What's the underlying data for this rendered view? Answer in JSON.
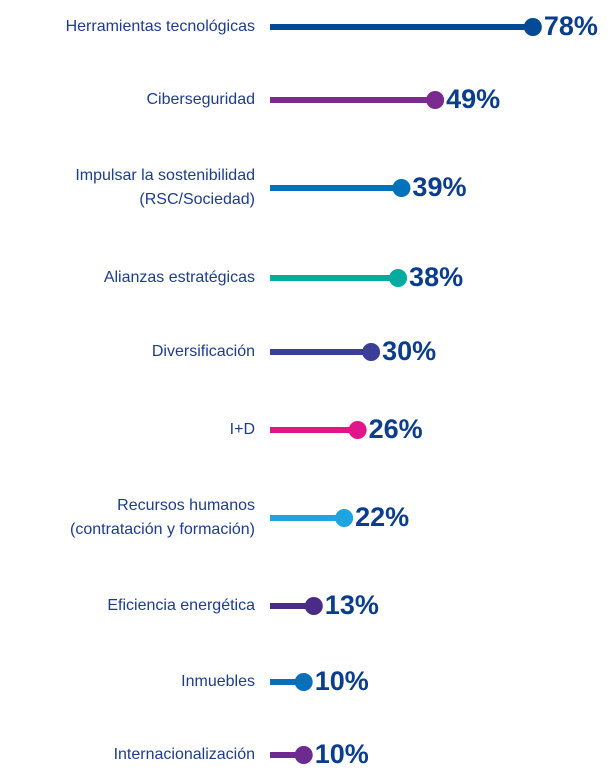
{
  "chart_data": {
    "type": "lollipop",
    "categories": [
      "Herramientas tecnológicas",
      "Ciberseguridad",
      [
        "Impulsar la sostenibilidad",
        "(RSC/Sociedad)"
      ],
      "Alianzas estratégicas",
      "Diversificación",
      "I+D",
      [
        "Recursos humanos",
        "(contratación y formación)"
      ],
      "Eficiencia energética",
      "Inmuebles",
      "Internacionalización"
    ],
    "values": [
      78,
      49,
      39,
      38,
      30,
      26,
      22,
      13,
      10,
      10
    ],
    "value_labels": [
      "78%",
      "49%",
      "39%",
      "38%",
      "30%",
      "26%",
      "22%",
      "13%",
      "10%",
      "10%"
    ],
    "colors": [
      "#004a97",
      "#7b2a90",
      "#0072bc",
      "#00aba0",
      "#3a3f98",
      "#e2168b",
      "#1ea5e0",
      "#4a2b88",
      "#0a6fb8",
      "#6b2b90"
    ]
  }
}
